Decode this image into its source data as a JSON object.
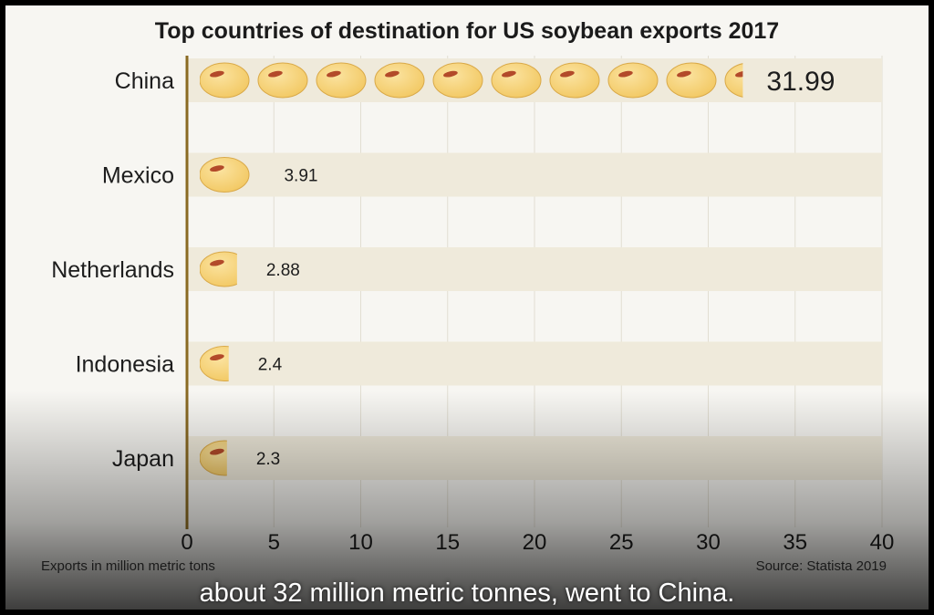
{
  "chart_data": {
    "type": "bar",
    "title": "Top countries of destination for US soybean exports 2017",
    "categories": [
      "China",
      "Mexico",
      "Netherlands",
      "Indonesia",
      "Japan"
    ],
    "values": [
      31.99,
      3.91,
      2.88,
      2.4,
      2.3
    ],
    "value_labels": [
      "31.99",
      "3.91",
      "2.88",
      "2.4",
      "2.3"
    ],
    "xlim": [
      0,
      40
    ],
    "xticks": [
      0,
      5,
      10,
      15,
      20,
      25,
      30,
      35,
      40
    ],
    "xtick_labels": [
      "0",
      "5",
      "10",
      "15",
      "20",
      "25",
      "30",
      "35",
      "40"
    ],
    "unit_note": "Exports in million metric tons",
    "source": "Source: Statista 2019",
    "grid": "vertical",
    "orientation": "horizontal",
    "mark": "soybean-icon"
  },
  "caption": "about 32 million metric tonnes, went to China.",
  "colors": {
    "bean": "#f2c862",
    "bean_hilite": "#fbe3a0",
    "bean_hilum": "#b34a2a",
    "band": "#efeadb",
    "axis": "#8a6a22",
    "grid": "#e2ded2"
  }
}
